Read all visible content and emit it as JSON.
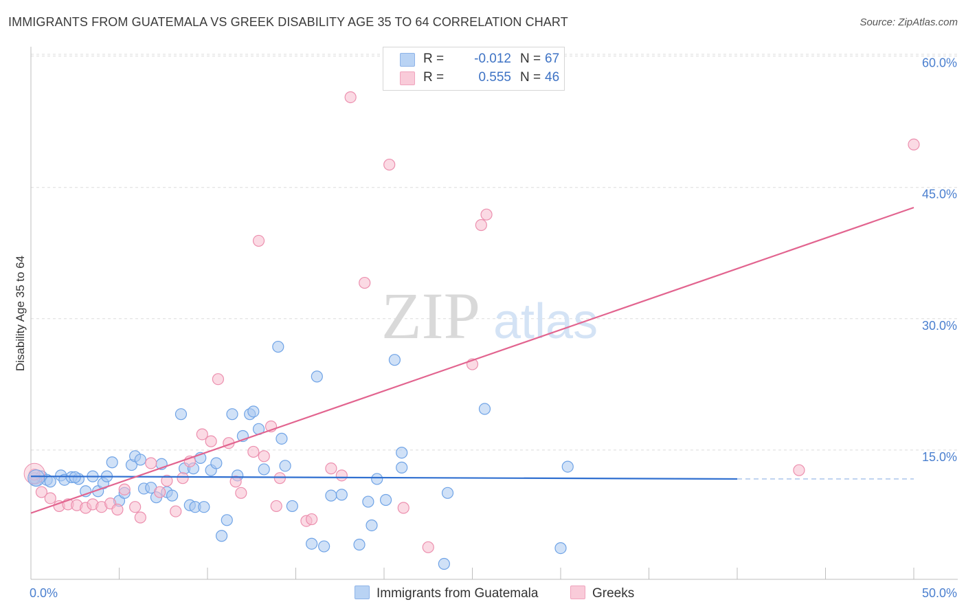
{
  "title": "IMMIGRANTS FROM GUATEMALA VS GREEK DISABILITY AGE 35 TO 64 CORRELATION CHART",
  "source": "Source: ZipAtlas.com",
  "watermark": {
    "zip": "ZIP",
    "atlas": "atlas"
  },
  "legend": {
    "rows": [
      {
        "r_label": "R =",
        "r_value": "-0.012",
        "n_label": "N =",
        "n_value": "67",
        "color": "#a9c8f0"
      },
      {
        "r_label": "R =",
        "r_value": "0.555",
        "n_label": "N =",
        "n_value": "46",
        "color": "#f7bccd"
      }
    ]
  },
  "bottom_legend": {
    "series1": "Immigrants from Guatemala",
    "series2": "Greeks"
  },
  "chart_data": {
    "type": "scatter",
    "ylabel": "Disability Age 35 to 64",
    "xlabel": "",
    "xlim": [
      0,
      50
    ],
    "ylim": [
      0,
      60
    ],
    "x_tick_labels": {
      "left": "0.0%",
      "right": "50.0%"
    },
    "y_ticks": [
      {
        "value": 15,
        "label": "15.0%"
      },
      {
        "value": 30,
        "label": "30.0%"
      },
      {
        "value": 45,
        "label": "45.0%"
      },
      {
        "value": 60,
        "label": "60.0%"
      }
    ],
    "series": [
      {
        "name": "Immigrants from Guatemala",
        "color": "#6fa3e6",
        "fill": "#a9c8f0",
        "trend": {
          "x1": 0,
          "y1": 12.0,
          "x2": 40,
          "y2": 11.7,
          "dash_x2": 50,
          "dash_y2": 11.7,
          "color": "#2f6fd0"
        },
        "points": [
          [
            0.3,
            11.5
          ],
          [
            0.6,
            12.0
          ],
          [
            0.9,
            11.6
          ],
          [
            1.1,
            11.4
          ],
          [
            1.7,
            12.1
          ],
          [
            1.9,
            11.6
          ],
          [
            2.3,
            11.9
          ],
          [
            2.7,
            11.7
          ],
          [
            3.1,
            10.3
          ],
          [
            3.5,
            12.0
          ],
          [
            3.8,
            10.3
          ],
          [
            4.1,
            11.2
          ],
          [
            4.3,
            12.0
          ],
          [
            4.6,
            13.6
          ],
          [
            5.0,
            9.2
          ],
          [
            5.3,
            10.1
          ],
          [
            5.7,
            13.3
          ],
          [
            5.9,
            14.3
          ],
          [
            6.2,
            13.9
          ],
          [
            6.4,
            10.6
          ],
          [
            6.8,
            10.7
          ],
          [
            7.1,
            9.6
          ],
          [
            7.4,
            13.4
          ],
          [
            7.7,
            10.2
          ],
          [
            8.0,
            9.8
          ],
          [
            8.5,
            19.1
          ],
          [
            8.7,
            12.9
          ],
          [
            9.0,
            8.7
          ],
          [
            9.3,
            8.5
          ],
          [
            9.6,
            14.1
          ],
          [
            9.8,
            8.5
          ],
          [
            10.2,
            12.7
          ],
          [
            10.5,
            13.5
          ],
          [
            10.8,
            5.2
          ],
          [
            11.1,
            7.0
          ],
          [
            11.4,
            19.1
          ],
          [
            11.7,
            12.1
          ],
          [
            12.0,
            16.6
          ],
          [
            12.4,
            19.1
          ],
          [
            12.6,
            19.4
          ],
          [
            12.9,
            17.4
          ],
          [
            13.2,
            12.8
          ],
          [
            14.0,
            26.8
          ],
          [
            14.2,
            16.3
          ],
          [
            14.4,
            13.2
          ],
          [
            14.8,
            8.6
          ],
          [
            15.9,
            4.3
          ],
          [
            16.2,
            23.4
          ],
          [
            16.6,
            4.0
          ],
          [
            17.0,
            9.8
          ],
          [
            17.6,
            9.9
          ],
          [
            18.6,
            4.2
          ],
          [
            19.1,
            9.1
          ],
          [
            19.3,
            6.4
          ],
          [
            19.6,
            11.7
          ],
          [
            20.1,
            9.3
          ],
          [
            20.6,
            25.3
          ],
          [
            21.0,
            14.7
          ],
          [
            21.0,
            13.0
          ],
          [
            23.4,
            2.0
          ],
          [
            23.6,
            10.1
          ],
          [
            30.0,
            3.8
          ],
          [
            30.4,
            13.1
          ],
          [
            25.7,
            19.7
          ],
          [
            9.2,
            12.9
          ],
          [
            2.5,
            11.9
          ],
          [
            0.2,
            11.8
          ]
        ]
      },
      {
        "name": "Greeks",
        "color": "#ec8fae",
        "fill": "#f7bccd",
        "trend": {
          "x1": 0,
          "y1": 7.8,
          "x2": 50,
          "y2": 42.7,
          "color": "#e2648f"
        },
        "points": [
          [
            0.2,
            12.2
          ],
          [
            0.6,
            10.2
          ],
          [
            1.1,
            9.5
          ],
          [
            1.6,
            8.6
          ],
          [
            2.1,
            8.8
          ],
          [
            2.6,
            8.7
          ],
          [
            3.1,
            8.4
          ],
          [
            3.5,
            8.8
          ],
          [
            4.0,
            8.5
          ],
          [
            4.5,
            8.9
          ],
          [
            4.9,
            8.2
          ],
          [
            5.3,
            10.5
          ],
          [
            5.9,
            8.5
          ],
          [
            6.2,
            7.3
          ],
          [
            6.8,
            13.5
          ],
          [
            7.3,
            10.2
          ],
          [
            7.7,
            11.5
          ],
          [
            8.2,
            8.0
          ],
          [
            8.6,
            11.8
          ],
          [
            9.0,
            13.7
          ],
          [
            9.7,
            16.8
          ],
          [
            10.2,
            16.0
          ],
          [
            10.6,
            23.1
          ],
          [
            11.2,
            15.8
          ],
          [
            11.6,
            11.4
          ],
          [
            11.9,
            10.1
          ],
          [
            12.6,
            14.8
          ],
          [
            12.9,
            38.9
          ],
          [
            13.2,
            14.3
          ],
          [
            13.6,
            17.7
          ],
          [
            13.9,
            8.6
          ],
          [
            14.1,
            11.8
          ],
          [
            15.6,
            6.9
          ],
          [
            15.9,
            7.1
          ],
          [
            17.0,
            12.9
          ],
          [
            17.6,
            12.1
          ],
          [
            18.1,
            55.3
          ],
          [
            18.9,
            34.1
          ],
          [
            20.3,
            47.6
          ],
          [
            21.1,
            8.4
          ],
          [
            22.5,
            3.9
          ],
          [
            25.0,
            24.8
          ],
          [
            25.5,
            40.7
          ],
          [
            25.8,
            41.9
          ],
          [
            43.5,
            12.7
          ],
          [
            50.0,
            49.9
          ]
        ]
      }
    ]
  }
}
